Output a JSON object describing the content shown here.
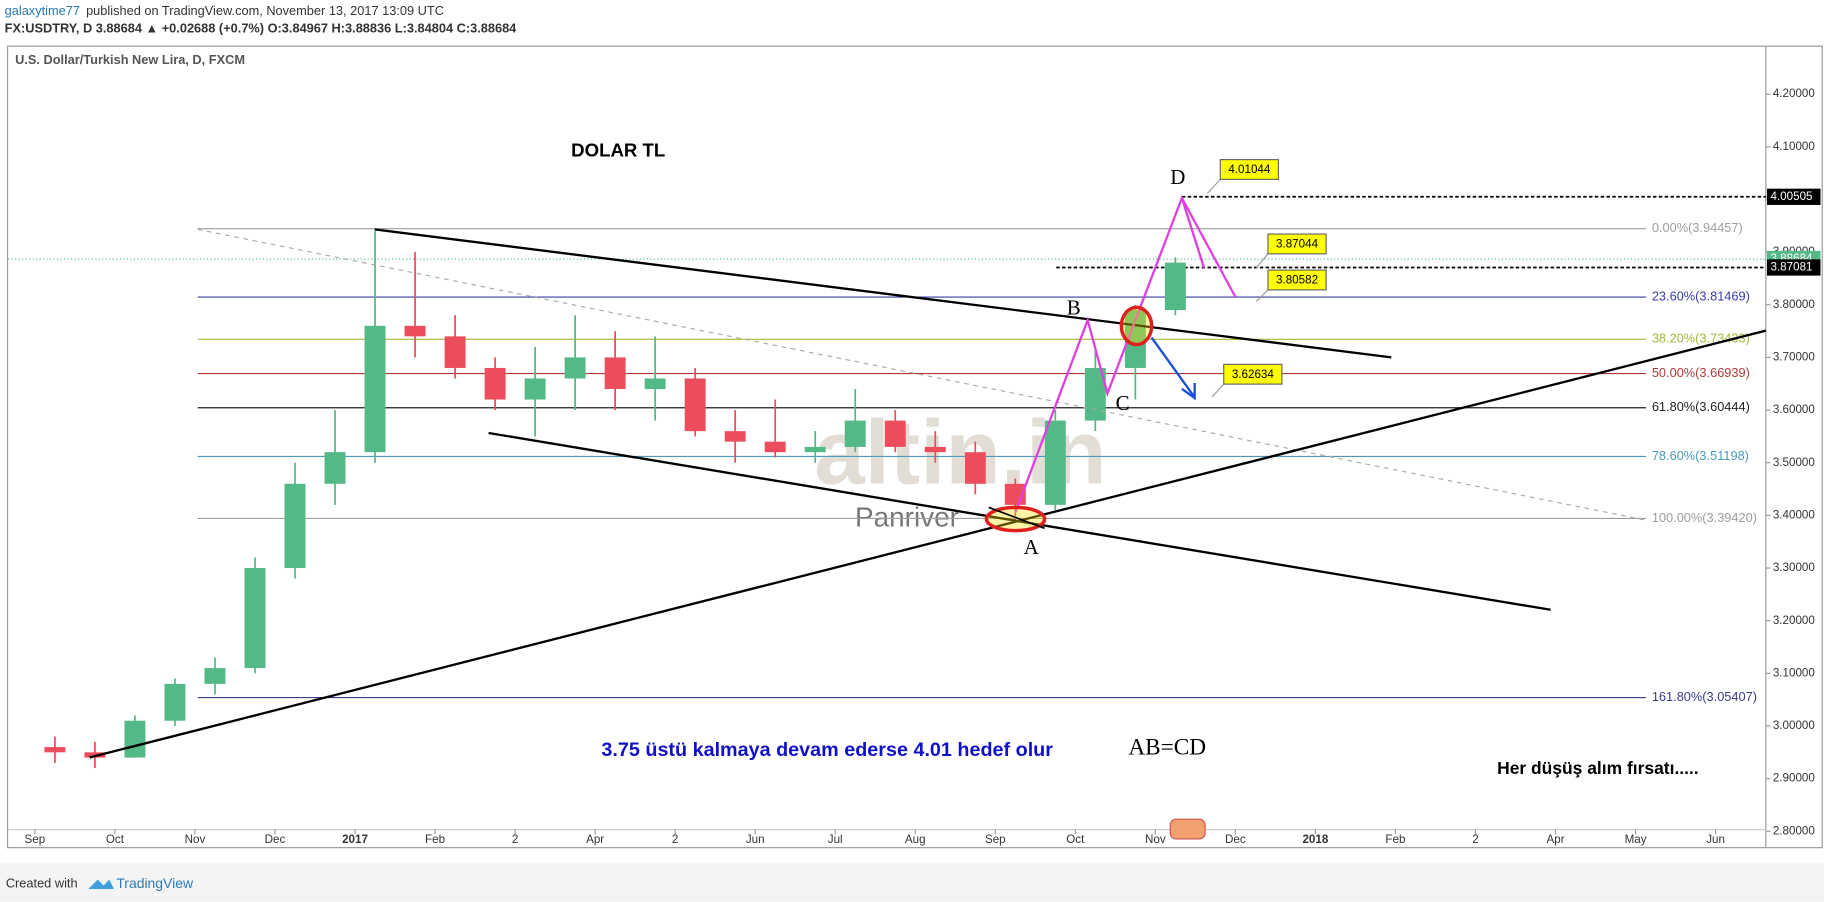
{
  "header": {
    "author": "galaxytime77",
    "published": "published on TradingView.com, November 13, 2017 13:09 UTC",
    "quote": "FX:USDTRY, D 3.88684 ▲ +0.02688 (+0.7%) O:3.84967 H:3.88836 L:3.84804 C:3.88684"
  },
  "footer": {
    "created": "Created with",
    "brand": "TradingView"
  },
  "chart_data": {
    "type": "candlestick",
    "title": "U.S. Dollar/Turkish New Lira, D, FXCM",
    "categories": [
      "Sep",
      null,
      "Oct",
      null,
      "Nov",
      null,
      "Dec",
      null,
      "2017",
      null,
      "Feb",
      null,
      "2",
      null,
      "Apr",
      null,
      "2",
      null,
      "Jun",
      null,
      "Jul",
      null,
      "Aug",
      null,
      "Sep",
      null,
      "Oct",
      null,
      "Nov",
      null,
      "Dec",
      null,
      "2018",
      null,
      "Feb",
      null,
      "2",
      null,
      "Apr",
      null,
      "May",
      null,
      "Jun",
      null
    ],
    "open": [
      2.96,
      2.95,
      2.94,
      3.01,
      3.08,
      3.11,
      3.3,
      3.46,
      3.52,
      3.76,
      3.74,
      3.68,
      3.62,
      3.66,
      3.7,
      3.64,
      3.66,
      3.56,
      3.54,
      3.52,
      3.53,
      3.58,
      3.53,
      3.52,
      3.46,
      3.42,
      3.58,
      3.68,
      3.79,
      null,
      null,
      null,
      null,
      null,
      null,
      null,
      null,
      null,
      null,
      null,
      null,
      null,
      null,
      null
    ],
    "high": [
      2.98,
      2.97,
      3.02,
      3.09,
      3.13,
      3.32,
      3.5,
      3.6,
      3.94,
      3.9,
      3.78,
      3.7,
      3.72,
      3.78,
      3.75,
      3.74,
      3.68,
      3.6,
      3.62,
      3.56,
      3.64,
      3.6,
      3.56,
      3.54,
      3.47,
      3.6,
      3.72,
      3.8,
      3.89,
      null,
      null,
      null,
      null,
      null,
      null,
      null,
      null,
      null,
      null,
      null,
      null,
      null,
      null,
      null
    ],
    "low": [
      2.93,
      2.92,
      2.94,
      3.0,
      3.06,
      3.1,
      3.28,
      3.42,
      3.5,
      3.7,
      3.66,
      3.6,
      3.55,
      3.6,
      3.6,
      3.58,
      3.55,
      3.5,
      3.51,
      3.5,
      3.52,
      3.52,
      3.5,
      3.44,
      3.39,
      3.41,
      3.56,
      3.62,
      3.78,
      null,
      null,
      null,
      null,
      null,
      null,
      null,
      null,
      null,
      null,
      null,
      null,
      null,
      null,
      null
    ],
    "close": [
      2.95,
      2.94,
      3.01,
      3.08,
      3.11,
      3.3,
      3.46,
      3.52,
      3.76,
      3.74,
      3.68,
      3.62,
      3.66,
      3.7,
      3.64,
      3.66,
      3.56,
      3.54,
      3.52,
      3.53,
      3.58,
      3.53,
      3.52,
      3.46,
      3.42,
      3.58,
      3.68,
      3.79,
      3.88,
      null,
      null,
      null,
      null,
      null,
      null,
      null,
      null,
      null,
      null,
      null,
      null,
      null,
      null,
      null
    ],
    "up_color": "#53b987",
    "down_color": "#eb4d5c",
    "ylim": [
      2.77,
      4.29
    ],
    "yticks": [
      {
        "value": 2.8,
        "label": "2.80000"
      },
      {
        "value": 2.9,
        "label": "2.90000"
      },
      {
        "value": 3.0,
        "label": "3.00000"
      },
      {
        "value": 3.1,
        "label": "3.10000"
      },
      {
        "value": 3.2,
        "label": "3.20000"
      },
      {
        "value": 3.3,
        "label": "3.30000"
      },
      {
        "value": 3.4,
        "label": "3.40000"
      },
      {
        "value": 3.5,
        "label": "3.50000"
      },
      {
        "value": 3.6,
        "label": "3.60000"
      },
      {
        "value": 3.7,
        "label": "3.70000"
      },
      {
        "value": 3.8,
        "label": "3.80000"
      },
      {
        "value": 3.9,
        "label": "3.90000"
      },
      {
        "value": 4.0,
        "label": "4.00000"
      },
      {
        "value": 4.1,
        "label": "4.10000"
      },
      {
        "value": 4.2,
        "label": "4.20000"
      }
    ],
    "fib_levels": [
      {
        "label": "0.00%(3.94457)",
        "value": 3.94457,
        "color": "#9e9e9e"
      },
      {
        "label": "23.60%(3.81469)",
        "value": 3.81469,
        "color": "#3b3ba8"
      },
      {
        "label": "38.20%(3.73433)",
        "value": 3.73433,
        "color": "#a5b83a"
      },
      {
        "label": "50.00%(3.66939)",
        "value": 3.66939,
        "color": "#b03a3a"
      },
      {
        "label": "61.80%(3.60444)",
        "value": 3.60444,
        "color": "#222222"
      },
      {
        "label": "78.60%(3.51198)",
        "value": 3.51198,
        "color": "#4a9abb"
      },
      {
        "label": "100.00%(3.39420)",
        "value": 3.3942,
        "color": "#9e9e9e"
      },
      {
        "label": "161.80%(3.05407)",
        "value": 3.05407,
        "color": "#3b3b8f"
      }
    ],
    "price_levels": [
      {
        "value": 4.00505,
        "color": "#000000"
      },
      {
        "value": 3.87081,
        "color": "#000000"
      }
    ],
    "last_price": {
      "value": 3.88684,
      "color": "#53b987"
    },
    "callouts": [
      "4.01044",
      "3.87044",
      "3.80582",
      "3.62634"
    ],
    "points": [
      "A",
      "B",
      "C",
      "D"
    ],
    "annotations": {
      "heading": "DOLAR TL",
      "target": "3.75 üstü kalmaya devam ederse 4.01 hedef olur",
      "pattern": "AB=CD",
      "note": "Her düşüş alım fırsatı.....",
      "watermark": "altin.in",
      "watermark2": "Panriver"
    }
  }
}
